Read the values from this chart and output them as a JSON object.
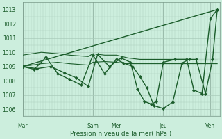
{
  "bg_color": "#cceedd",
  "grid_color": "#aaccbb",
  "line_color": "#1a5c2a",
  "marker_color": "#1a5c2a",
  "xlabel": "Pression niveau de la mer( hPa )",
  "xlabel_color": "#1a5c2a",
  "yticks": [
    1006,
    1007,
    1008,
    1009,
    1010,
    1011,
    1012,
    1013
  ],
  "ylim": [
    1005.5,
    1013.5
  ],
  "xtick_labels": [
    "Mar",
    "Sam",
    "Mer",
    "Jeu",
    "Ven"
  ],
  "xtick_positions": [
    0,
    3,
    4,
    6,
    8
  ],
  "xlim": [
    0,
    8.4
  ],
  "vline_positions": [
    0,
    3,
    4,
    6,
    8
  ],
  "series": [
    {
      "x": [
        0,
        8.3
      ],
      "y": [
        1009.0,
        1013.0
      ],
      "has_markers": false,
      "lw": 1.0
    },
    {
      "x": [
        0,
        0.8,
        1.5,
        2.0,
        2.8,
        3.0,
        3.5,
        4.0,
        4.5,
        5.0,
        5.5,
        6.0,
        6.5,
        7.0,
        7.5,
        8.0,
        8.3
      ],
      "y": [
        1009.8,
        1010.0,
        1009.9,
        1009.8,
        1009.7,
        1009.9,
        1009.8,
        1009.8,
        1009.6,
        1009.5,
        1009.5,
        1009.5,
        1009.5,
        1009.5,
        1009.45,
        1009.45,
        1009.45
      ],
      "has_markers": false,
      "lw": 0.8
    },
    {
      "x": [
        0,
        0.8,
        1.5,
        2.0,
        2.8,
        3.0,
        3.5,
        4.0,
        4.5,
        5.0,
        5.5,
        6.0,
        6.5,
        7.0,
        7.5,
        8.0,
        8.3
      ],
      "y": [
        1009.0,
        1009.2,
        1009.3,
        1009.2,
        1009.1,
        1009.3,
        1009.35,
        1009.3,
        1009.2,
        1009.2,
        1009.2,
        1009.2,
        1009.2,
        1009.2,
        1009.2,
        1009.2,
        1009.2
      ],
      "has_markers": false,
      "lw": 0.8
    },
    {
      "x": [
        0,
        0.5,
        1.0,
        1.5,
        2.0,
        2.5,
        3.0,
        3.5,
        4.0,
        4.3,
        4.7,
        5.0,
        5.3,
        5.6,
        6.0,
        6.4,
        6.8,
        7.1,
        7.4,
        7.8,
        8.1,
        8.3
      ],
      "y": [
        1009.0,
        1008.8,
        1009.65,
        1008.5,
        1008.1,
        1007.7,
        1009.8,
        1008.5,
        1009.5,
        1009.25,
        1009.0,
        1008.3,
        1007.5,
        1006.25,
        1006.05,
        1006.5,
        1009.25,
        1009.5,
        1009.5,
        1007.1,
        1009.5,
        1013.0
      ],
      "has_markers": true,
      "lw": 1.0
    },
    {
      "x": [
        0,
        0.6,
        1.2,
        1.8,
        2.3,
        2.8,
        3.2,
        3.7,
        4.2,
        4.6,
        4.9,
        5.2,
        5.5,
        5.7,
        6.0,
        6.5,
        7.0,
        7.3,
        7.65,
        8.0,
        8.3
      ],
      "y": [
        1009.0,
        1008.85,
        1009.0,
        1008.55,
        1008.2,
        1007.6,
        1009.85,
        1009.0,
        1009.6,
        1009.3,
        1007.4,
        1006.55,
        1006.35,
        1006.55,
        1009.3,
        1009.5,
        1009.5,
        1007.35,
        1007.1,
        1012.35,
        1013.0
      ],
      "has_markers": true,
      "lw": 1.0
    }
  ]
}
